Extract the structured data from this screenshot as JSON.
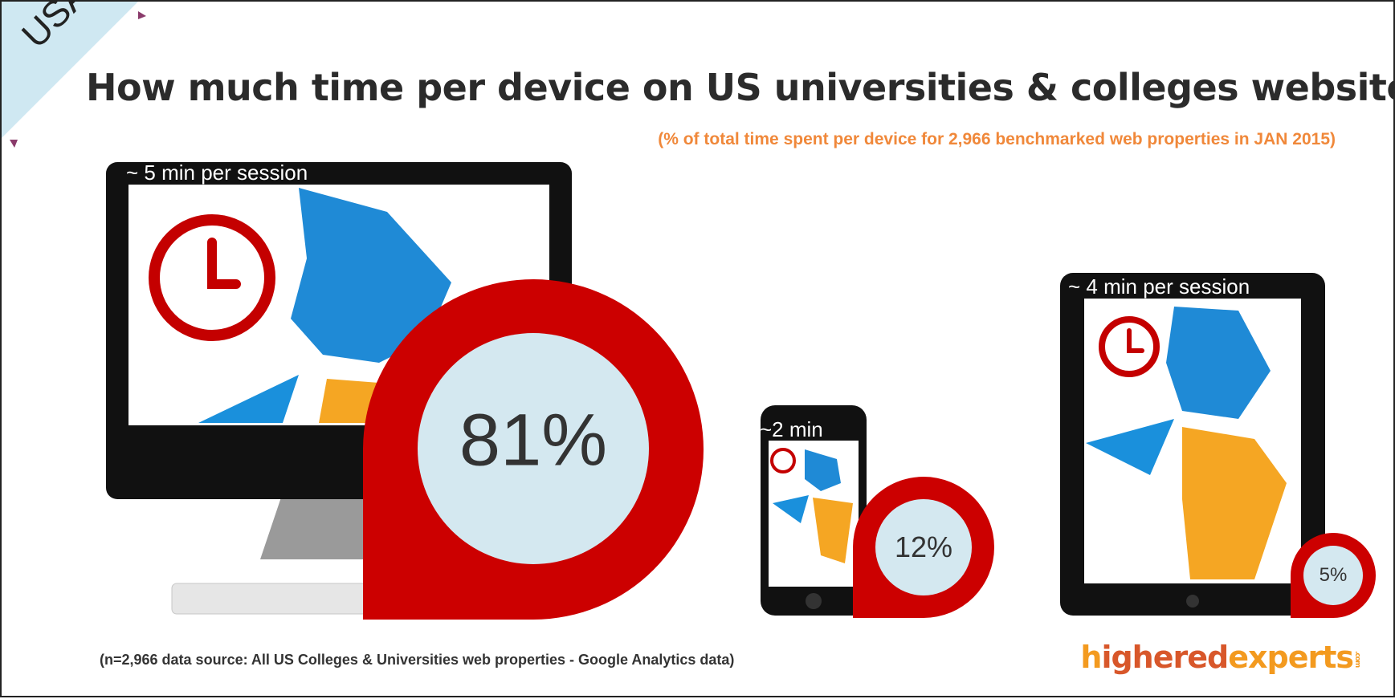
{
  "corner_label": "USA",
  "title": "How much time per device on US universities & colleges websites?",
  "subtitle": "(% of total time spent per device for 2,966 benchmarked web properties in JAN 2015)",
  "footnote": "(n=2,966 data source: All US Colleges & Universities web properties - Google Analytics data)",
  "logo": {
    "part1": "h",
    "part2": "ighered",
    "part3": "experts",
    "suffix": ".com"
  },
  "colors": {
    "marker_red": "#cc0000",
    "marker_fill": "#d4e8f0",
    "title": "#2b2b2b",
    "subtitle": "#f0883a",
    "logo_orange": "#f39a1f",
    "logo_red": "#d8572a",
    "corner_ribbon": "#cfe8f2"
  },
  "chart_data": {
    "type": "pie",
    "title": "How much time per device on US universities & colleges websites?",
    "subtitle": "(% of total time spent per device for 2,966 benchmarked web properties in JAN 2015)",
    "categories": [
      "Desktop",
      "Mobile",
      "Tablet"
    ],
    "values": [
      81,
      12,
      5
    ],
    "unit": "%",
    "labels": [
      "81%",
      "12%",
      "5%"
    ],
    "session_notes": [
      "~ 5 min per session",
      "~2 min",
      "~ 4 min per session"
    ]
  }
}
